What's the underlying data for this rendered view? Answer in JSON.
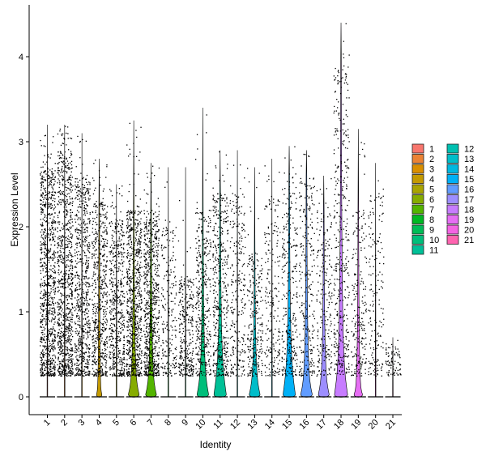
{
  "chart_data": {
    "type": "violin",
    "xlabel": "Identity",
    "ylabel": "Expression Level",
    "ylim": [
      -0.22,
      4.6
    ],
    "yticks": [
      0,
      1,
      2,
      3,
      4
    ],
    "legend_position": "right",
    "legend_columns": 2,
    "grid": false,
    "categories": [
      {
        "label": "1",
        "color": "#F8766D",
        "max": 3.2,
        "upper": 2.7,
        "dens": 0.98,
        "violin_peak": 0,
        "violin_w": 0
      },
      {
        "label": "2",
        "color": "#EB8335",
        "max": 3.2,
        "upper": 2.9,
        "dens": 1.0,
        "violin_peak": 0,
        "violin_w": 0
      },
      {
        "label": "3",
        "color": "#DA8F00",
        "max": 3.1,
        "upper": 2.6,
        "dens": 0.7,
        "violin_peak": 0,
        "violin_w": 0
      },
      {
        "label": "4",
        "color": "#C49A00",
        "max": 2.8,
        "upper": 2.3,
        "dens": 0.6,
        "violin_peak": 0.08,
        "violin_w": 0.35
      },
      {
        "label": "5",
        "color": "#A9A400",
        "max": 2.5,
        "upper": 2.1,
        "dens": 0.55,
        "violin_peak": 0,
        "violin_w": 0
      },
      {
        "label": "6",
        "color": "#86AC00",
        "max": 3.25,
        "upper": 2.2,
        "dens": 0.8,
        "violin_peak": 0.18,
        "violin_w": 0.7
      },
      {
        "label": "7",
        "color": "#53B400",
        "max": 2.75,
        "upper": 2.2,
        "dens": 0.75,
        "violin_peak": 0.18,
        "violin_w": 0.7
      },
      {
        "label": "8",
        "color": "#00B823",
        "max": 2.7,
        "upper": 2.0,
        "dens": 0.2,
        "violin_peak": 0,
        "violin_w": 0
      },
      {
        "label": "9",
        "color": "#00BC56",
        "max": 2.7,
        "upper": 1.4,
        "dens": 0.3,
        "violin_peak": 0,
        "violin_w": 0
      },
      {
        "label": "10",
        "color": "#00BE7A",
        "max": 3.4,
        "upper": 2.2,
        "dens": 0.4,
        "violin_peak": 0.25,
        "violin_w": 0.75
      },
      {
        "label": "11",
        "color": "#00C097",
        "max": 2.9,
        "upper": 2.4,
        "dens": 0.45,
        "violin_peak": 0.35,
        "violin_w": 0.8
      },
      {
        "label": "12",
        "color": "#00C0B1",
        "max": 2.9,
        "upper": 2.4,
        "dens": 0.25,
        "violin_peak": 0,
        "violin_w": 0
      },
      {
        "label": "13",
        "color": "#00BDC9",
        "max": 2.7,
        "upper": 1.7,
        "dens": 0.25,
        "violin_peak": 0.2,
        "violin_w": 0.7
      },
      {
        "label": "14",
        "color": "#00B8E0",
        "max": 2.8,
        "upper": 2.4,
        "dens": 0.2,
        "violin_peak": 0,
        "violin_w": 0
      },
      {
        "label": "15",
        "color": "#00B0F6",
        "max": 2.95,
        "upper": 2.6,
        "dens": 0.3,
        "violin_peak": 0.35,
        "violin_w": 0.8
      },
      {
        "label": "16",
        "color": "#619CFF",
        "max": 2.9,
        "upper": 2.6,
        "dens": 0.25,
        "violin_peak": 0.2,
        "violin_w": 0.75
      },
      {
        "label": "17",
        "color": "#9D8EFF",
        "max": 2.6,
        "upper": 2.2,
        "dens": 0.2,
        "violin_peak": 0.2,
        "violin_w": 0.7
      },
      {
        "label": "18",
        "color": "#C77CFF",
        "max": 4.4,
        "upper": 3.9,
        "dens": 0.4,
        "violin_peak": 0.35,
        "violin_w": 0.85
      },
      {
        "label": "19",
        "color": "#E66EF4",
        "max": 3.15,
        "upper": 2.2,
        "dens": 0.2,
        "violin_peak": 0.1,
        "violin_w": 0.55
      },
      {
        "label": "20",
        "color": "#F564E3",
        "max": 2.75,
        "upper": 2.4,
        "dens": 0.15,
        "violin_peak": 0,
        "violin_w": 0
      },
      {
        "label": "21",
        "color": "#FF64B0",
        "max": 0.7,
        "upper": 0.6,
        "dens": 0.05,
        "violin_peak": 0,
        "violin_w": 0
      }
    ]
  }
}
